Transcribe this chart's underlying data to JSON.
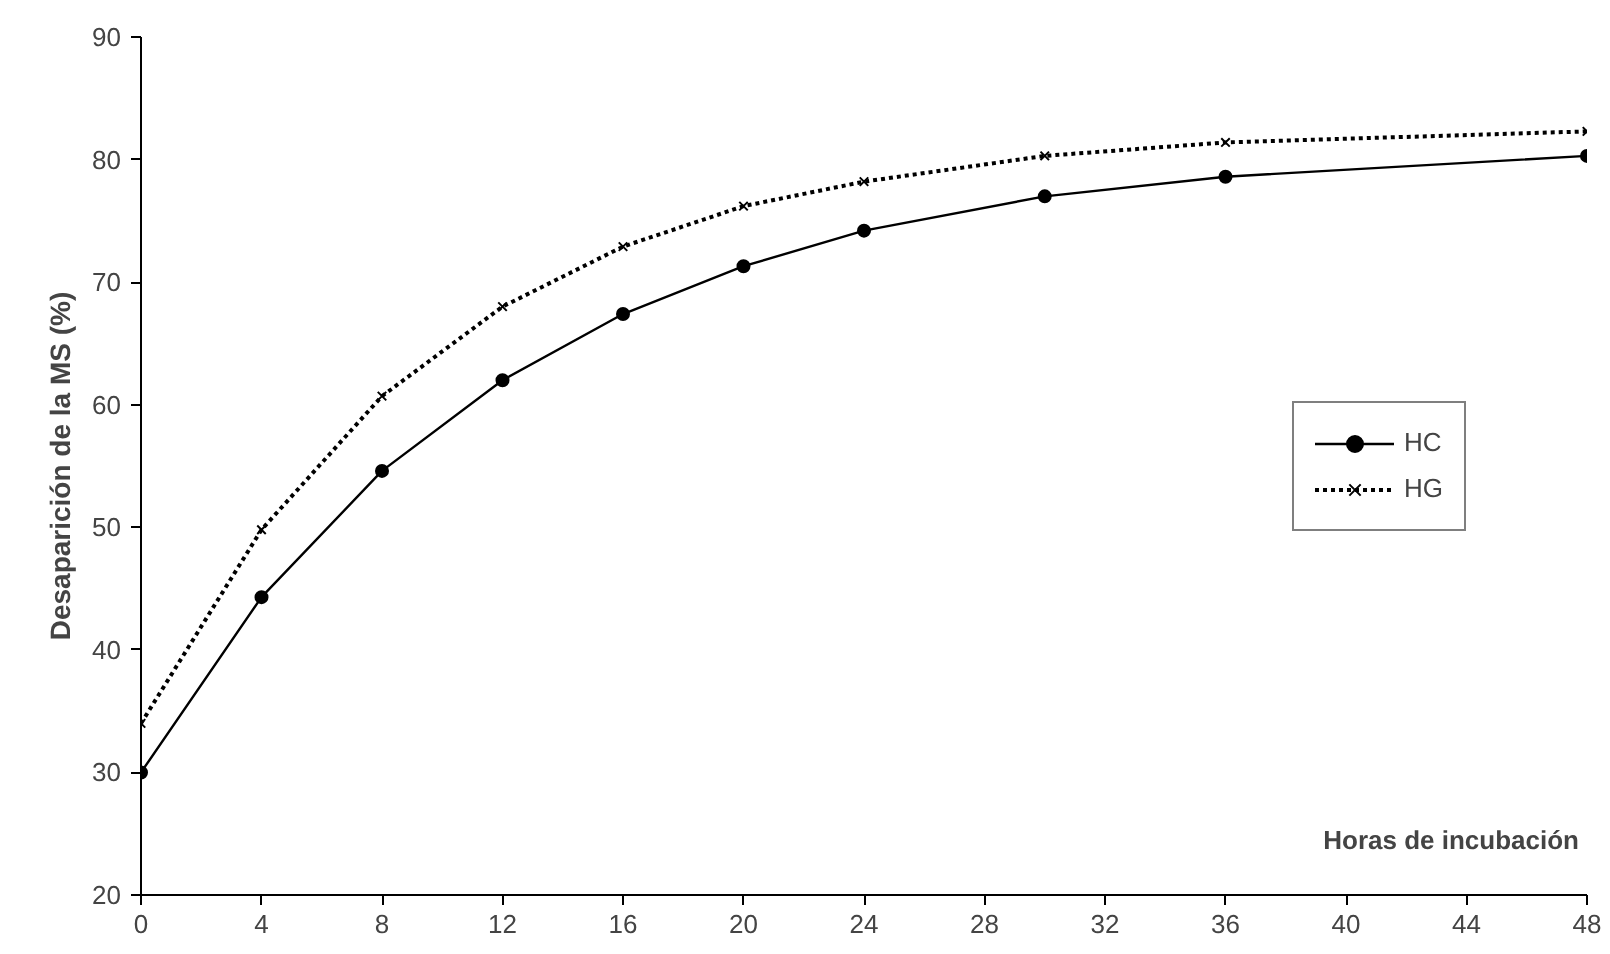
{
  "chart_data": {
    "type": "line",
    "xlabel": "Horas de incubación",
    "ylabel": "Desaparición de la MS (%)",
    "x": [
      0,
      4,
      8,
      12,
      16,
      20,
      24,
      30,
      36,
      48
    ],
    "series": [
      {
        "name": "HC",
        "color": "#000000",
        "marker": "circle",
        "line_style": "solid",
        "values": [
          30,
          44.3,
          54.6,
          62,
          67.4,
          71.3,
          74.2,
          77,
          78.6,
          80.3
        ]
      },
      {
        "name": "HG",
        "color": "#000000",
        "marker": "cross",
        "line_style": "dotted",
        "values": [
          34,
          49.8,
          60.7,
          68,
          72.9,
          76.2,
          78.2,
          80.3,
          81.4,
          82.3
        ]
      }
    ],
    "xlim": [
      0,
      48
    ],
    "xticks": [
      0,
      4,
      8,
      12,
      16,
      20,
      24,
      28,
      32,
      36,
      40,
      44,
      48
    ],
    "ylim": [
      20,
      90
    ],
    "yticks": [
      20,
      30,
      40,
      50,
      60,
      70,
      80,
      90
    ],
    "grid": false,
    "legend": "right"
  }
}
